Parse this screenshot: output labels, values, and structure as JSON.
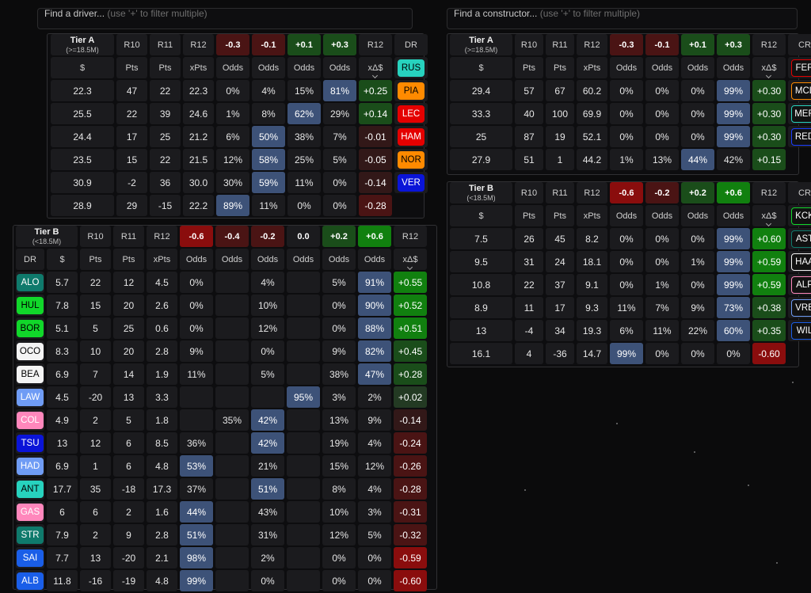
{
  "search": {
    "driver": {
      "main": "Find a driver...",
      "hint": "(use '+' to filter multiple)"
    },
    "constructor": {
      "main": "Find a constructor...",
      "hint": "(use '+' to filter multiple)"
    }
  },
  "colors": {
    "green_dark": "#1a4d1a",
    "green_bright": "#11800f",
    "red_dark": "#4a1414",
    "red_bright": "#8a0d0d",
    "blue_highlight": "#3d5278"
  },
  "drivers_a": {
    "tier": "Tier A",
    "tier_sub": "(>=18.5M)",
    "head1": [
      "R10",
      "R11",
      "R12",
      "-0.3",
      "-0.1",
      "+0.1",
      "+0.3",
      "R12"
    ],
    "head2": [
      "DR",
      "$",
      "Pts",
      "Pts",
      "xPts",
      "Odds",
      "Odds",
      "Odds",
      "Odds",
      "xΔ$"
    ],
    "rows": [
      {
        "code": "RUS",
        "color": "#27d2be",
        "fg": "#000",
        "c": [
          "22.3",
          "47",
          "22",
          "22.3",
          "0%",
          "4%",
          "15%",
          "81%",
          "+0.25"
        ]
      },
      {
        "code": "PIA",
        "color": "#ff8a00",
        "fg": "#000",
        "c": [
          "25.5",
          "22",
          "39",
          "24.6",
          "1%",
          "8%",
          "62%",
          "29%",
          "+0.14"
        ]
      },
      {
        "code": "LEC",
        "color": "#e40000",
        "fg": "#fff",
        "c": [
          "24.4",
          "17",
          "25",
          "21.2",
          "6%",
          "50%",
          "38%",
          "7%",
          "-0.01"
        ]
      },
      {
        "code": "HAM",
        "color": "#e40000",
        "fg": "#fff",
        "c": [
          "23.5",
          "15",
          "22",
          "21.5",
          "12%",
          "58%",
          "25%",
          "5%",
          "-0.05"
        ]
      },
      {
        "code": "NOR",
        "color": "#ff8a00",
        "fg": "#000",
        "c": [
          "30.9",
          "-2",
          "36",
          "30.0",
          "30%",
          "59%",
          "11%",
          "0%",
          "-0.14"
        ]
      },
      {
        "code": "VER",
        "color": "#0a14d8",
        "fg": "#fff",
        "c": [
          "28.9",
          "29",
          "-15",
          "22.2",
          "89%",
          "11%",
          "0%",
          "0%",
          "-0.28"
        ]
      }
    ]
  },
  "drivers_b": {
    "tier": "Tier B",
    "tier_sub": "(<18.5M)",
    "head1": [
      "R10",
      "R11",
      "R12",
      "-0.6",
      "-0.4",
      "-0.2",
      "0.0",
      "+0.2",
      "+0.6",
      "R12"
    ],
    "head2": [
      "DR",
      "$",
      "Pts",
      "Pts",
      "xPts",
      "Odds",
      "Odds",
      "Odds",
      "Odds",
      "Odds",
      "Odds",
      "xΔ$"
    ],
    "rows": [
      {
        "code": "ALO",
        "color": "#0f7a6c",
        "fg": "#fff",
        "c": [
          "5.7",
          "22",
          "12",
          "4.5",
          "0%",
          "",
          "4%",
          "",
          "5%",
          "91%",
          "+0.55"
        ]
      },
      {
        "code": "HUL",
        "color": "#11d72a",
        "fg": "#000",
        "c": [
          "7.8",
          "15",
          "20",
          "2.6",
          "0%",
          "",
          "10%",
          "",
          "0%",
          "90%",
          "+0.52"
        ]
      },
      {
        "code": "BOR",
        "color": "#11d72a",
        "fg": "#000",
        "c": [
          "5.1",
          "5",
          "25",
          "0.6",
          "0%",
          "",
          "12%",
          "",
          "0%",
          "88%",
          "+0.51"
        ]
      },
      {
        "code": "OCO",
        "color": "#f4f4f4",
        "fg": "#000",
        "c": [
          "8.3",
          "10",
          "20",
          "2.8",
          "9%",
          "",
          "0%",
          "",
          "9%",
          "82%",
          "+0.45"
        ]
      },
      {
        "code": "BEA",
        "color": "#f4f4f4",
        "fg": "#000",
        "c": [
          "6.9",
          "7",
          "14",
          "1.9",
          "11%",
          "",
          "5%",
          "",
          "38%",
          "47%",
          "+0.28"
        ]
      },
      {
        "code": "LAW",
        "color": "#6f9cf5",
        "fg": "#fff",
        "c": [
          "4.5",
          "-20",
          "13",
          "3.3",
          "",
          "",
          "",
          "95%",
          "3%",
          "2%",
          "+0.02"
        ]
      },
      {
        "code": "COL",
        "color": "#ff87bc",
        "fg": "#fff",
        "c": [
          "4.9",
          "2",
          "5",
          "1.8",
          "",
          "35%",
          "42%",
          "",
          "13%",
          "9%",
          "-0.14"
        ]
      },
      {
        "code": "TSU",
        "color": "#0a14d8",
        "fg": "#fff",
        "c": [
          "13",
          "12",
          "6",
          "8.5",
          "36%",
          "",
          "42%",
          "",
          "19%",
          "4%",
          "-0.24"
        ]
      },
      {
        "code": "HAD",
        "color": "#6f9cf5",
        "fg": "#fff",
        "c": [
          "6.9",
          "1",
          "6",
          "4.8",
          "53%",
          "",
          "21%",
          "",
          "15%",
          "12%",
          "-0.26"
        ]
      },
      {
        "code": "ANT",
        "color": "#27d2be",
        "fg": "#000",
        "c": [
          "17.7",
          "35",
          "-18",
          "17.3",
          "37%",
          "",
          "51%",
          "",
          "8%",
          "4%",
          "-0.28"
        ]
      },
      {
        "code": "GAS",
        "color": "#ff87bc",
        "fg": "#fff",
        "c": [
          "6",
          "6",
          "2",
          "1.6",
          "44%",
          "",
          "43%",
          "",
          "10%",
          "3%",
          "-0.31"
        ]
      },
      {
        "code": "STR",
        "color": "#0f7a6c",
        "fg": "#fff",
        "c": [
          "7.9",
          "2",
          "9",
          "2.8",
          "51%",
          "",
          "31%",
          "",
          "12%",
          "5%",
          "-0.32"
        ]
      },
      {
        "code": "SAI",
        "color": "#1a5ee8",
        "fg": "#fff",
        "c": [
          "7.7",
          "13",
          "-20",
          "2.1",
          "98%",
          "",
          "2%",
          "",
          "0%",
          "0%",
          "-0.59"
        ]
      },
      {
        "code": "ALB",
        "color": "#1a5ee8",
        "fg": "#fff",
        "c": [
          "11.8",
          "-16",
          "-19",
          "4.8",
          "99%",
          "",
          "0%",
          "",
          "0%",
          "0%",
          "-0.60"
        ]
      }
    ]
  },
  "constructors_a": {
    "tier": "Tier A",
    "tier_sub": "(>=18.5M)",
    "head1": [
      "R10",
      "R11",
      "R12",
      "-0.3",
      "-0.1",
      "+0.1",
      "+0.3",
      "R12"
    ],
    "head2": [
      "CR",
      "$",
      "Pts",
      "Pts",
      "xPts",
      "Odds",
      "Odds",
      "Odds",
      "Odds",
      "xΔ$"
    ],
    "rows": [
      {
        "code": "FER",
        "border": "#e40000",
        "c": [
          "29.4",
          "57",
          "67",
          "60.2",
          "0%",
          "0%",
          "0%",
          "99%",
          "+0.30"
        ]
      },
      {
        "code": "MCL",
        "border": "#ff8a00",
        "c": [
          "33.3",
          "40",
          "100",
          "69.9",
          "0%",
          "0%",
          "0%",
          "99%",
          "+0.30"
        ]
      },
      {
        "code": "MER",
        "border": "#27d2be",
        "c": [
          "25",
          "87",
          "19",
          "52.1",
          "0%",
          "0%",
          "0%",
          "99%",
          "+0.30"
        ]
      },
      {
        "code": "RED",
        "border": "#1a3dff",
        "c": [
          "27.9",
          "51",
          "1",
          "44.2",
          "1%",
          "13%",
          "44%",
          "42%",
          "+0.15"
        ]
      }
    ]
  },
  "constructors_b": {
    "tier": "Tier B",
    "tier_sub": "(<18.5M)",
    "head1": [
      "R10",
      "R11",
      "R12",
      "-0.6",
      "-0.2",
      "+0.2",
      "+0.6",
      "R12"
    ],
    "head2": [
      "CR",
      "$",
      "Pts",
      "Pts",
      "xPts",
      "Odds",
      "Odds",
      "Odds",
      "Odds",
      "xΔ$"
    ],
    "rows": [
      {
        "code": "KCK",
        "border": "#11d72a",
        "c": [
          "7.5",
          "26",
          "45",
          "8.2",
          "0%",
          "0%",
          "0%",
          "99%",
          "+0.60"
        ]
      },
      {
        "code": "AST",
        "border": "#0f7a6c",
        "c": [
          "9.5",
          "31",
          "24",
          "18.1",
          "0%",
          "0%",
          "1%",
          "99%",
          "+0.59"
        ]
      },
      {
        "code": "HAA",
        "border": "#f4f4f4",
        "c": [
          "10.8",
          "22",
          "37",
          "9.1",
          "0%",
          "1%",
          "0%",
          "99%",
          "+0.59"
        ]
      },
      {
        "code": "ALP",
        "border": "#ff87bc",
        "c": [
          "8.9",
          "11",
          "17",
          "9.3",
          "11%",
          "7%",
          "9%",
          "73%",
          "+0.38"
        ]
      },
      {
        "code": "VRB",
        "border": "#6f9cf5",
        "c": [
          "13",
          "-4",
          "34",
          "19.3",
          "6%",
          "11%",
          "22%",
          "60%",
          "+0.35"
        ]
      },
      {
        "code": "WIL",
        "border": "#1a5ee8",
        "c": [
          "16.1",
          "4",
          "-36",
          "14.7",
          "99%",
          "0%",
          "0%",
          "0%",
          "-0.60"
        ]
      }
    ]
  }
}
